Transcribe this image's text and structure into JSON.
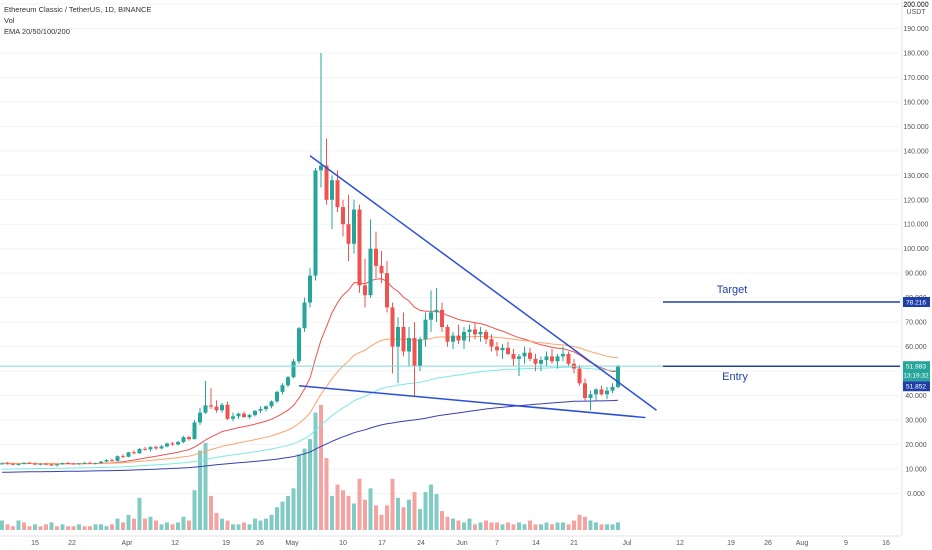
{
  "header": {
    "symbol": "Ethereum Classic / TetherUS, 1D, BINANCE",
    "volume_label": "Vol",
    "ema_label": "EMA 20/50/100/200"
  },
  "colors": {
    "up": "#26a69a",
    "down": "#ef5350",
    "up_vol": "#80cbc4",
    "down_vol": "#f5a3a1",
    "trendline": "#2b4fd8",
    "level": "#1f3fa8",
    "ema20": "#ef5350",
    "ema50": "#ffa36c",
    "ema100": "#7de8e8",
    "ema200": "#3a3fb0",
    "price_line": "#7fd9d9"
  },
  "chart_data": {
    "type": "candlestick",
    "title": "Ethereum Classic / TetherUS, 1D, BINANCE",
    "y_unit": "USDT",
    "ylim": [
      -8,
      200
    ],
    "y_ticks": [
      "0.000",
      "10.000",
      "20.000",
      "30.000",
      "40.000",
      "50.000",
      "60.000",
      "70.000",
      "80.000",
      "90.000",
      "100.000",
      "110.000",
      "120.000",
      "130.000",
      "140.000",
      "150.000",
      "160.000",
      "170.000",
      "180.000",
      "190.000",
      "200.000"
    ],
    "x_tick_labels": [
      "15",
      "22",
      "Apr",
      "12",
      "19",
      "26",
      "May",
      "10",
      "17",
      "24",
      "Jun",
      "7",
      "14",
      "21",
      "Jul",
      "12",
      "19",
      "26",
      "Aug",
      "9",
      "16"
    ],
    "ohlc": [
      [
        12,
        12.6,
        11.7,
        12.3
      ],
      [
        12.3,
        12.8,
        11.8,
        12.1
      ],
      [
        12.1,
        12.4,
        11.5,
        11.8
      ],
      [
        11.8,
        12.2,
        11.4,
        12.0
      ],
      [
        12.0,
        12.7,
        11.8,
        12.5
      ],
      [
        12.5,
        12.9,
        12.0,
        12.2
      ],
      [
        12.2,
        12.6,
        11.6,
        11.9
      ],
      [
        11.9,
        12.3,
        11.5,
        12.1
      ],
      [
        12.1,
        12.5,
        11.7,
        11.8
      ],
      [
        11.8,
        12.2,
        11.2,
        11.6
      ],
      [
        11.6,
        12.0,
        11.0,
        11.9
      ],
      [
        11.9,
        12.6,
        11.7,
        12.4
      ],
      [
        12.4,
        12.9,
        12.1,
        12.2
      ],
      [
        12.2,
        12.5,
        11.8,
        12.0
      ],
      [
        12.0,
        12.4,
        11.7,
        12.3
      ],
      [
        12.3,
        12.8,
        12.0,
        12.5
      ],
      [
        12.5,
        13.0,
        12.1,
        12.3
      ],
      [
        12.3,
        12.6,
        11.9,
        12.4
      ],
      [
        12.4,
        13.2,
        12.2,
        13.0
      ],
      [
        13.0,
        14.0,
        12.8,
        13.6
      ],
      [
        13.6,
        14.2,
        13.0,
        13.3
      ],
      [
        13.3,
        15.5,
        13.1,
        15.2
      ],
      [
        15.2,
        16.0,
        14.6,
        15.0
      ],
      [
        15.0,
        17.0,
        14.8,
        16.8
      ],
      [
        16.8,
        17.6,
        16.0,
        16.4
      ],
      [
        16.4,
        18.5,
        16.2,
        18.2
      ],
      [
        18.2,
        19.0,
        17.5,
        18.0
      ],
      [
        18.0,
        19.3,
        17.2,
        18.9
      ],
      [
        18.9,
        19.5,
        17.8,
        18.4
      ],
      [
        18.4,
        19.8,
        18.0,
        19.2
      ],
      [
        19.2,
        20.8,
        18.8,
        20.4
      ],
      [
        20.4,
        21.0,
        19.5,
        20.0
      ],
      [
        20.0,
        21.5,
        19.6,
        21.0
      ],
      [
        21.0,
        23.5,
        20.6,
        23.0
      ],
      [
        23.0,
        23.6,
        21.5,
        22.2
      ],
      [
        22.2,
        30.0,
        22.0,
        29.0
      ],
      [
        29.0,
        35.0,
        28.0,
        33.0
      ],
      [
        33.0,
        46.0,
        32.5,
        36.0
      ],
      [
        36.0,
        43.0,
        34.5,
        35.5
      ],
      [
        35.5,
        38.0,
        33.0,
        34.0
      ],
      [
        34.0,
        37.0,
        33.0,
        36.2
      ],
      [
        36.2,
        37.5,
        30.0,
        30.5
      ],
      [
        30.5,
        33.0,
        29.5,
        31.5
      ],
      [
        31.5,
        33.0,
        30.5,
        32.6
      ],
      [
        32.6,
        33.5,
        31.0,
        31.2
      ],
      [
        31.2,
        32.5,
        30.5,
        32.0
      ],
      [
        32.0,
        34.0,
        31.5,
        33.8
      ],
      [
        33.8,
        35.5,
        32.8,
        34.5
      ],
      [
        34.5,
        36.0,
        33.5,
        35.6
      ],
      [
        35.6,
        38.0,
        34.8,
        37.6
      ],
      [
        37.6,
        42.0,
        37.0,
        41.5
      ],
      [
        41.5,
        45.0,
        40.5,
        44.2
      ],
      [
        44.2,
        48.0,
        43.5,
        47.5
      ],
      [
        47.5,
        55.0,
        47.0,
        54.0
      ],
      [
        54.0,
        68.0,
        53.0,
        67.5
      ],
      [
        67.5,
        80.0,
        66.0,
        78.0
      ],
      [
        78.0,
        92.0,
        76.0,
        89.0
      ],
      [
        89.0,
        133.0,
        87.0,
        132.0
      ],
      [
        132.0,
        180.0,
        125.0,
        134.0
      ],
      [
        134.0,
        145.0,
        118.0,
        120.0
      ],
      [
        120.0,
        130.0,
        108.0,
        128.0
      ],
      [
        128.0,
        132.0,
        115.0,
        117.0
      ],
      [
        117.0,
        120.0,
        105.0,
        110.0
      ],
      [
        110.0,
        122.0,
        95.0,
        102.0
      ],
      [
        102.0,
        120.0,
        98.0,
        116.0
      ],
      [
        116.0,
        118.0,
        82.0,
        85.0
      ],
      [
        85.0,
        96.0,
        76.0,
        81.0
      ],
      [
        81.0,
        112.0,
        80.0,
        100.0
      ],
      [
        100.0,
        107.0,
        88.0,
        93.0
      ],
      [
        93.0,
        99.0,
        86.0,
        90.0
      ],
      [
        90.0,
        95.0,
        74.0,
        76.0
      ],
      [
        76.0,
        78.0,
        49.0,
        60.0
      ],
      [
        60.0,
        72.0,
        45.0,
        68.0
      ],
      [
        68.0,
        74.0,
        56.0,
        58.0
      ],
      [
        58.0,
        68.0,
        52.0,
        63.5
      ],
      [
        63.5,
        70.0,
        40.0,
        52.0
      ],
      [
        52.0,
        64.0,
        50.0,
        63.0
      ],
      [
        63.0,
        74.0,
        60.0,
        71.0
      ],
      [
        71.0,
        83.0,
        66.0,
        74.0
      ],
      [
        74.0,
        84.0,
        70.0,
        75.0
      ],
      [
        75.0,
        78.0,
        66.0,
        68.0
      ],
      [
        68.0,
        69.0,
        60.0,
        62.0
      ],
      [
        62.0,
        66.0,
        59.0,
        64.5
      ],
      [
        64.5,
        69.0,
        61.0,
        62.5
      ],
      [
        62.5,
        68.0,
        59.0,
        66.0
      ],
      [
        66.0,
        69.0,
        62.0,
        67.0
      ],
      [
        67.0,
        70.0,
        63.0,
        65.0
      ],
      [
        65.0,
        68.0,
        62.0,
        66.0
      ],
      [
        66.0,
        67.0,
        61.0,
        63.0
      ],
      [
        63.0,
        65.0,
        58.0,
        60.0
      ],
      [
        60.0,
        62.0,
        56.0,
        58.5
      ],
      [
        58.5,
        61.0,
        55.0,
        59.5
      ],
      [
        59.5,
        62.0,
        56.5,
        57.0
      ],
      [
        57.0,
        59.0,
        52.0,
        55.0
      ],
      [
        55.0,
        57.0,
        48.0,
        56.0
      ],
      [
        56.0,
        60.0,
        53.0,
        57.5
      ],
      [
        57.5,
        59.5,
        54.0,
        55.0
      ],
      [
        55.0,
        57.0,
        50.0,
        53.0
      ],
      [
        53.0,
        56.0,
        50.0,
        54.5
      ],
      [
        54.5,
        58.0,
        52.0,
        56.0
      ],
      [
        56.0,
        59.0,
        53.0,
        54.0
      ],
      [
        54.0,
        57.0,
        51.0,
        56.0
      ],
      [
        56.0,
        60.0,
        54.0,
        57.0
      ],
      [
        57.0,
        58.0,
        52.0,
        53.0
      ],
      [
        53.0,
        55.0,
        49.0,
        51.0
      ],
      [
        51.0,
        52.5,
        44.0,
        45.0
      ],
      [
        45.0,
        47.0,
        38.0,
        39.0
      ],
      [
        39.0,
        42.0,
        34.0,
        40.5
      ],
      [
        40.5,
        43.0,
        38.0,
        42.5
      ],
      [
        42.5,
        44.0,
        40.0,
        40.5
      ],
      [
        40.5,
        43.5,
        38.5,
        42.0
      ],
      [
        42.0,
        45.0,
        41.0,
        43.5
      ],
      [
        43.5,
        52.5,
        43.0,
        52.0
      ]
    ],
    "volume": [
      [
        5,
        1
      ],
      [
        3,
        0
      ],
      [
        2,
        0
      ],
      [
        5,
        1
      ],
      [
        4,
        0
      ],
      [
        2,
        0
      ],
      [
        3,
        1
      ],
      [
        2,
        0
      ],
      [
        3,
        0
      ],
      [
        4,
        1
      ],
      [
        2,
        0
      ],
      [
        3,
        1
      ],
      [
        2,
        0
      ],
      [
        2,
        0
      ],
      [
        3,
        1
      ],
      [
        2,
        0
      ],
      [
        2,
        0
      ],
      [
        3,
        1
      ],
      [
        3,
        1
      ],
      [
        2,
        1
      ],
      [
        3,
        0
      ],
      [
        6,
        1
      ],
      [
        4,
        0
      ],
      [
        8,
        1
      ],
      [
        6,
        0
      ],
      [
        17,
        1
      ],
      [
        6,
        0
      ],
      [
        7,
        1
      ],
      [
        5,
        0
      ],
      [
        3,
        1
      ],
      [
        4,
        1
      ],
      [
        3,
        0
      ],
      [
        4,
        1
      ],
      [
        7,
        1
      ],
      [
        5,
        0
      ],
      [
        21,
        1
      ],
      [
        42,
        1
      ],
      [
        46,
        1
      ],
      [
        18,
        0
      ],
      [
        9,
        0
      ],
      [
        6,
        1
      ],
      [
        5,
        0
      ],
      [
        3,
        1
      ],
      [
        3,
        1
      ],
      [
        4,
        0
      ],
      [
        3,
        1
      ],
      [
        6,
        1
      ],
      [
        5,
        1
      ],
      [
        6,
        1
      ],
      [
        8,
        1
      ],
      [
        12,
        1
      ],
      [
        15,
        1
      ],
      [
        18,
        1
      ],
      [
        22,
        1
      ],
      [
        40,
        1
      ],
      [
        43,
        1
      ],
      [
        48,
        1
      ],
      [
        62,
        1
      ],
      [
        66,
        0
      ],
      [
        38,
        0
      ],
      [
        18,
        1
      ],
      [
        24,
        0
      ],
      [
        21,
        0
      ],
      [
        18,
        0
      ],
      [
        14,
        1
      ],
      [
        27,
        0
      ],
      [
        16,
        0
      ],
      [
        22,
        1
      ],
      [
        13,
        0
      ],
      [
        8,
        0
      ],
      [
        13,
        0
      ],
      [
        27,
        0
      ],
      [
        17,
        1
      ],
      [
        12,
        0
      ],
      [
        16,
        1
      ],
      [
        20,
        0
      ],
      [
        11,
        1
      ],
      [
        20,
        1
      ],
      [
        24,
        1
      ],
      [
        19,
        1
      ],
      [
        10,
        0
      ],
      [
        7,
        0
      ],
      [
        6,
        1
      ],
      [
        5,
        0
      ],
      [
        4,
        1
      ],
      [
        6,
        1
      ],
      [
        3,
        0
      ],
      [
        4,
        1
      ],
      [
        5,
        0
      ],
      [
        4,
        0
      ],
      [
        4,
        0
      ],
      [
        3,
        1
      ],
      [
        4,
        0
      ],
      [
        3,
        0
      ],
      [
        4,
        1
      ],
      [
        3,
        1
      ],
      [
        5,
        0
      ],
      [
        3,
        0
      ],
      [
        3,
        1
      ],
      [
        4,
        1
      ],
      [
        3,
        0
      ],
      [
        4,
        1
      ],
      [
        4,
        1
      ],
      [
        3,
        0
      ],
      [
        5,
        0
      ],
      [
        8,
        0
      ],
      [
        7,
        0
      ],
      [
        5,
        1
      ],
      [
        4,
        1
      ],
      [
        3,
        0
      ],
      [
        3,
        1
      ],
      [
        3,
        1
      ],
      [
        4,
        1
      ]
    ],
    "vol_max": 66,
    "annotations": {
      "target_label": "Target",
      "target_value": 78.216,
      "entry_label": "Entry",
      "entry_value": 51.983
    },
    "price_tags": {
      "last": "51.983",
      "countdown": "13:19:32",
      "ema": "51.852",
      "target": "78.216",
      "unit_top": "200.000",
      "unit": "USDT"
    },
    "trendlines": [
      {
        "from": [
          56,
          138
        ],
        "to": [
          119,
          34
        ]
      },
      {
        "from": [
          54,
          44
        ],
        "to": [
          117,
          31
        ]
      }
    ]
  }
}
